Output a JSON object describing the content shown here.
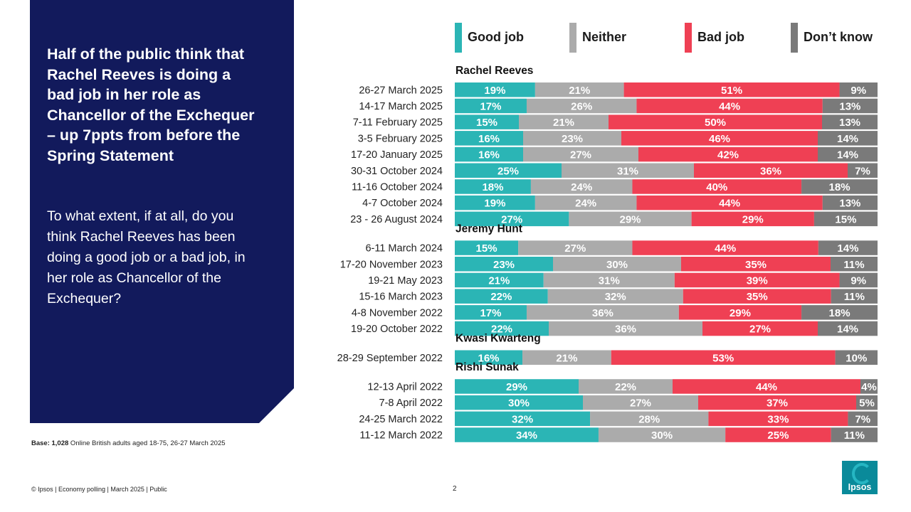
{
  "headline": "Half of the public think that Rachel Reeves is doing a bad job in her role as Chancellor of the Exchequer – up 7ppts from before the Spring Statement",
  "question": "To what extent, if at all, do you think Rachel Reeves has been doing a good job or a bad job, in her role as Chancellor of the Exchequer?",
  "base": {
    "label": "Base: 1,028",
    "text": " Online British adults aged 18-75, 26-27 March 2025"
  },
  "footer": "© Ipsos | Economy polling | March 2025 | Public",
  "page_number": "2",
  "logo_text": "Ipsos",
  "colors": {
    "good": "#2bb5b5",
    "neither": "#ababab",
    "bad": "#ef4054",
    "dont_know": "#7a7a7a",
    "panel": "#121a5c"
  },
  "chart_data": {
    "type": "bar",
    "orientation": "horizontal",
    "stacked": true,
    "legend": [
      "Good job",
      "Neither",
      "Bad job",
      "Don’t know"
    ],
    "legend_position": "top",
    "groups": [
      {
        "name": "Rachel Reeves",
        "rows": [
          {
            "date": "26-27 March 2025",
            "values": [
              19,
              21,
              51,
              9
            ]
          },
          {
            "date": "14-17 March 2025",
            "values": [
              17,
              26,
              44,
              13
            ]
          },
          {
            "date": "7-11 February 2025",
            "values": [
              15,
              21,
              50,
              13
            ]
          },
          {
            "date": "3-5 February 2025",
            "values": [
              16,
              23,
              46,
              14
            ]
          },
          {
            "date": "17-20 January 2025",
            "values": [
              16,
              27,
              42,
              14
            ]
          },
          {
            "date": "30-31 October 2024",
            "values": [
              25,
              31,
              36,
              7
            ]
          },
          {
            "date": "11-16 October 2024",
            "values": [
              18,
              24,
              40,
              18
            ]
          },
          {
            "date": "4-7 October 2024",
            "values": [
              19,
              24,
              44,
              13
            ]
          },
          {
            "date": "23 - 26 August 2024",
            "values": [
              27,
              29,
              29,
              15
            ]
          }
        ]
      },
      {
        "name": "Jeremy Hunt",
        "rows": [
          {
            "date": "6-11 March 2024",
            "values": [
              15,
              27,
              44,
              14
            ]
          },
          {
            "date": "17-20 November 2023",
            "values": [
              23,
              30,
              35,
              11
            ]
          },
          {
            "date": "19-21 May 2023",
            "values": [
              21,
              31,
              39,
              9
            ]
          },
          {
            "date": "15-16 March 2023",
            "values": [
              22,
              32,
              35,
              11
            ]
          },
          {
            "date": "4-8 November 2022",
            "values": [
              17,
              36,
              29,
              18
            ]
          },
          {
            "date": "19-20 October 2022",
            "values": [
              22,
              36,
              27,
              14
            ]
          }
        ]
      },
      {
        "name": "Kwasi Kwarteng",
        "rows": [
          {
            "date": "28-29 September 2022",
            "values": [
              16,
              21,
              53,
              10
            ]
          }
        ]
      },
      {
        "name": "Rishi Sunak",
        "rows": [
          {
            "date": "12-13 April 2022",
            "values": [
              29,
              22,
              44,
              4
            ]
          },
          {
            "date": "7-8 April 2022",
            "values": [
              30,
              27,
              37,
              5
            ]
          },
          {
            "date": "24-25 March 2022",
            "values": [
              32,
              28,
              33,
              7
            ]
          },
          {
            "date": "11-12 March 2022",
            "values": [
              34,
              30,
              25,
              11
            ]
          }
        ]
      }
    ]
  }
}
